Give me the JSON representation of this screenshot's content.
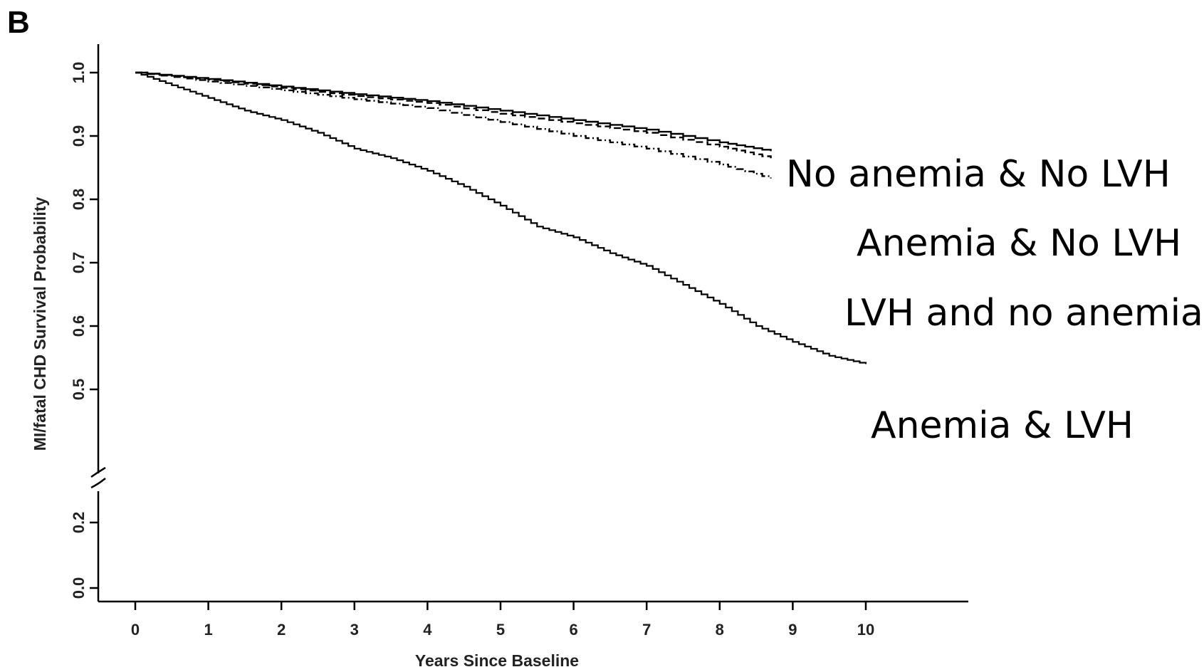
{
  "panel_label": "B",
  "chart_data": {
    "type": "line",
    "title": "",
    "xlabel": "Years Since Baseline",
    "ylabel": "MI/fatal CHD Survival Probability",
    "xlim": [
      0,
      11
    ],
    "ylim": [
      0,
      1.0
    ],
    "y_axis_break": [
      0.2,
      0.5
    ],
    "x_ticks": [
      0,
      1,
      2,
      3,
      4,
      5,
      6,
      7,
      8,
      9,
      10
    ],
    "x_tick_labels": [
      "0",
      "1",
      "2",
      "3",
      "4",
      "5",
      "6",
      "7",
      "8",
      "9",
      "10"
    ],
    "y_ticks": [
      0.0,
      0.2,
      0.5,
      0.6,
      0.7,
      0.8,
      0.9,
      1.0
    ],
    "y_tick_labels": [
      "0.0",
      "0.2",
      "0.5",
      "0.6",
      "0.7",
      "0.8",
      "0.9",
      "1.0"
    ],
    "grid": false,
    "annotations": [
      "No anemia & No LVH",
      "Anemia & No LVH",
      "LVH and no anemia",
      "Anemia & LVH"
    ],
    "series": [
      {
        "name": "No anemia & No LVH",
        "dash": "solid",
        "x": [
          0,
          1,
          2,
          3,
          4,
          5,
          6,
          7,
          8,
          8.7
        ],
        "y": [
          1.0,
          0.99,
          0.978,
          0.966,
          0.955,
          0.94,
          0.925,
          0.91,
          0.89,
          0.876
        ]
      },
      {
        "name": "Anemia & No LVH",
        "dash": "dashed",
        "x": [
          0,
          1,
          2,
          3,
          4,
          5,
          6,
          7,
          8,
          8.7
        ],
        "y": [
          1.0,
          0.989,
          0.976,
          0.963,
          0.952,
          0.935,
          0.92,
          0.905,
          0.883,
          0.865
        ]
      },
      {
        "name": "LVH and no anemia",
        "dash": "dotdash",
        "x": [
          0,
          1,
          2,
          3,
          4,
          5,
          6,
          7,
          8,
          8.7
        ],
        "y": [
          1.0,
          0.986,
          0.972,
          0.958,
          0.944,
          0.922,
          0.9,
          0.88,
          0.855,
          0.833
        ]
      },
      {
        "name": "Anemia & LVH",
        "dash": "solid",
        "x": [
          0,
          0.5,
          1,
          1.5,
          2,
          2.5,
          3,
          3.5,
          4,
          4.5,
          5,
          5.5,
          6,
          6.5,
          7,
          7.5,
          8,
          8.5,
          9,
          9.5,
          10
        ],
        "y": [
          1.0,
          0.98,
          0.96,
          0.94,
          0.925,
          0.905,
          0.88,
          0.865,
          0.845,
          0.82,
          0.79,
          0.757,
          0.74,
          0.715,
          0.695,
          0.665,
          0.635,
          0.6,
          0.575,
          0.553,
          0.54
        ]
      }
    ]
  }
}
